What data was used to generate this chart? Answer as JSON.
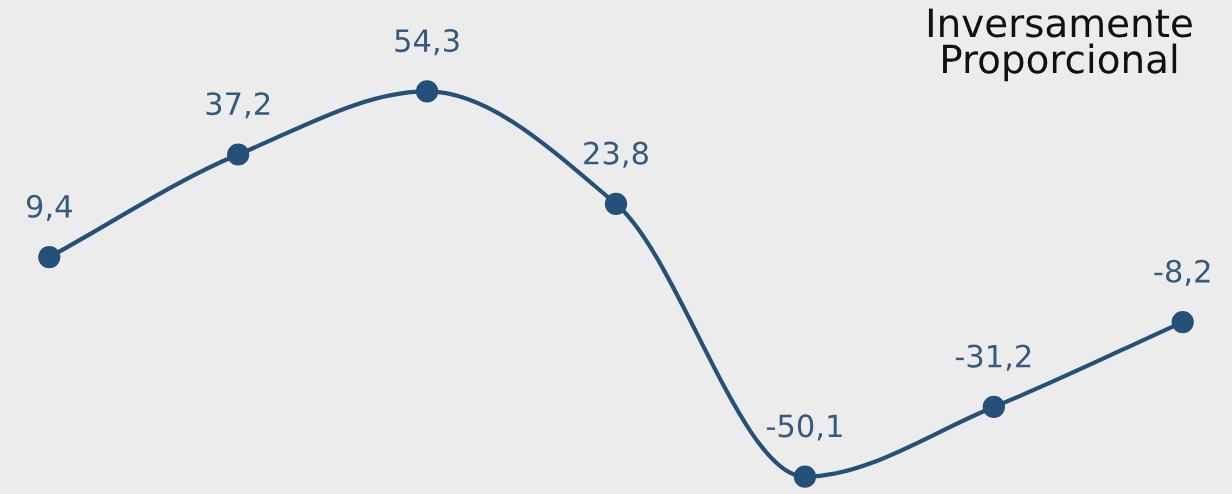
{
  "chart_data": {
    "type": "line",
    "title": "Inversamente\nProporcional",
    "categories": [
      null,
      null,
      null,
      null,
      null,
      null,
      null
    ],
    "series": [
      {
        "color": "#25507a",
        "values": [
          9.4,
          37.2,
          54.3,
          23.8,
          -50.1,
          -31.2,
          -8.2
        ],
        "value_labels": [
          "9,4",
          "37,2",
          "54,3",
          "23,8",
          "-50,1",
          "-31,2",
          "-8,2"
        ]
      }
    ],
    "marker": "circle",
    "line_style": "solid",
    "grid": false,
    "legend": false,
    "tick_labels": false
  }
}
